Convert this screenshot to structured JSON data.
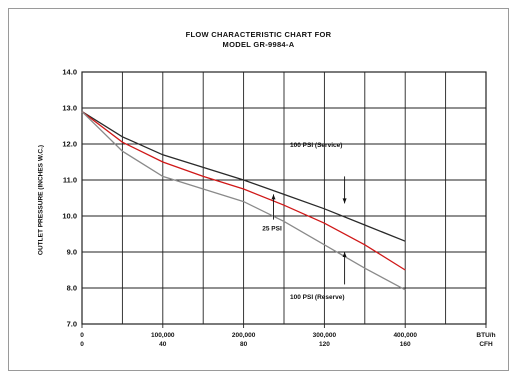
{
  "chart_data": {
    "type": "line",
    "title": "FLOW CHARACTERISTIC CHART FOR",
    "subtitle": "MODEL GR-9984-A",
    "ylabel": "OUTLET PRESSURE (INCHES W.C.)",
    "ylim": [
      7.0,
      14.0
    ],
    "yticks": [
      "7.0",
      "8.0",
      "9.0",
      "10.0",
      "11.0",
      "12.0",
      "13.0",
      "14.0"
    ],
    "xlim": [
      0,
      500000
    ],
    "xticks": [
      {
        "value": 0,
        "line1": "0",
        "line2": "0"
      },
      {
        "value": 100000,
        "line1": "100,000",
        "line2": "40"
      },
      {
        "value": 200000,
        "line1": "200,000",
        "line2": "80"
      },
      {
        "value": 300000,
        "line1": "300,000",
        "line2": "120"
      },
      {
        "value": 400000,
        "line1": "400,000",
        "line2": "160"
      },
      {
        "value": 500000,
        "line1": "BTU/h",
        "line2": "CFH"
      }
    ],
    "grid": true,
    "series": [
      {
        "name": "100 PSI (Service)",
        "color": "#2a2a2a",
        "x": [
          0,
          50000,
          100000,
          150000,
          200000,
          250000,
          300000,
          350000,
          400000
        ],
        "y": [
          12.9,
          12.2,
          11.7,
          11.35,
          11.0,
          10.6,
          10.2,
          9.75,
          9.3
        ]
      },
      {
        "name": "25 PSI",
        "color": "#d01818",
        "x": [
          0,
          50000,
          100000,
          150000,
          200000,
          250000,
          300000,
          350000,
          400000
        ],
        "y": [
          12.9,
          12.05,
          11.5,
          11.1,
          10.75,
          10.3,
          9.8,
          9.2,
          8.5
        ]
      },
      {
        "name": "100 PSI (Reserve)",
        "color": "#8a8a8a",
        "x": [
          0,
          50000,
          100000,
          150000,
          200000,
          250000,
          300000,
          350000,
          400000
        ],
        "y": [
          12.9,
          11.8,
          11.1,
          10.75,
          10.4,
          9.85,
          9.2,
          8.55,
          7.95
        ]
      }
    ],
    "annotations": [
      {
        "text": "100 PSI (Service)",
        "series": 0
      },
      {
        "text": "25 PSI",
        "series": 1
      },
      {
        "text": "100 PSI (Reserve)",
        "series": 2
      }
    ]
  }
}
